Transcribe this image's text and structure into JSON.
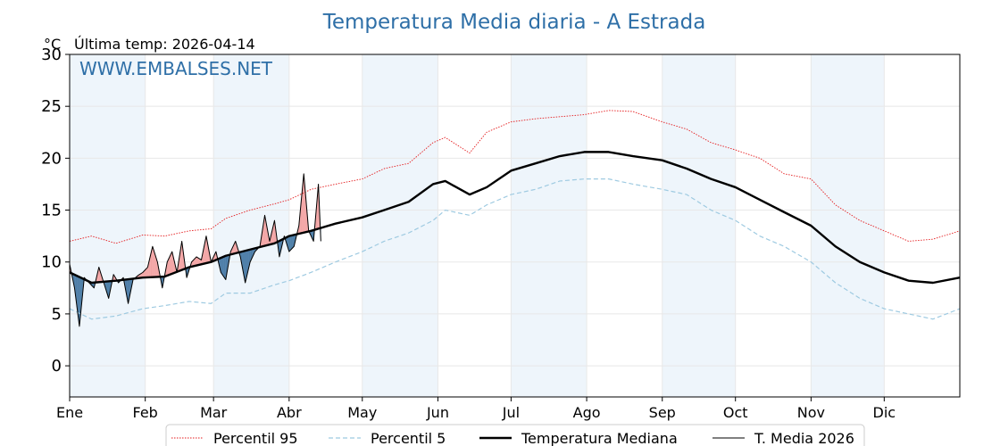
{
  "chart_data": {
    "type": "line",
    "title": "Temperatura Media diaria - A Estrada",
    "unit_label": "°C",
    "last_update": "Última temp: 2026-04-14",
    "watermark": "WWW.EMBALSES.NET",
    "ylim": [
      -3,
      30
    ],
    "y_ticks": [
      0,
      5,
      10,
      15,
      20,
      25,
      30
    ],
    "grid": true,
    "x_ticks": [
      {
        "label": "Ene",
        "day": 1
      },
      {
        "label": "Feb",
        "day": 32
      },
      {
        "label": "Mar",
        "day": 60
      },
      {
        "label": "Abr",
        "day": 91
      },
      {
        "label": "May",
        "day": 121
      },
      {
        "label": "Jun",
        "day": 152
      },
      {
        "label": "Jul",
        "day": 182
      },
      {
        "label": "Ago",
        "day": 213
      },
      {
        "label": "Sep",
        "day": 244
      },
      {
        "label": "Oct",
        "day": 274
      },
      {
        "label": "Nov",
        "day": 305
      },
      {
        "label": "Dic",
        "day": 335
      }
    ],
    "x_range": [
      1,
      366
    ],
    "shaded_months": [
      "Ene",
      "Mar",
      "May",
      "Jul",
      "Sep",
      "Nov"
    ],
    "legend_position": "bottom",
    "colors": {
      "title": "#2e6fa7",
      "p95": "#e41a1c",
      "p5": "#9ecae1",
      "median": "#000000",
      "current": "#000000",
      "above_fill": "#f4a6a6",
      "below_fill": "#4d7ea8",
      "month_band": "#eef5fb"
    },
    "series": [
      {
        "name": "Percentil 95",
        "style": "dotted-red",
        "points": [
          [
            1,
            12.0
          ],
          [
            10,
            12.5
          ],
          [
            20,
            11.8
          ],
          [
            31,
            12.6
          ],
          [
            40,
            12.5
          ],
          [
            50,
            13.0
          ],
          [
            59,
            13.2
          ],
          [
            65,
            14.2
          ],
          [
            75,
            15.0
          ],
          [
            85,
            15.6
          ],
          [
            91,
            16.0
          ],
          [
            100,
            17.0
          ],
          [
            110,
            17.5
          ],
          [
            121,
            18.0
          ],
          [
            130,
            19.0
          ],
          [
            140,
            19.5
          ],
          [
            150,
            21.5
          ],
          [
            155,
            22.0
          ],
          [
            165,
            20.5
          ],
          [
            172,
            22.5
          ],
          [
            182,
            23.5
          ],
          [
            192,
            23.8
          ],
          [
            202,
            24.0
          ],
          [
            212,
            24.2
          ],
          [
            222,
            24.6
          ],
          [
            232,
            24.5
          ],
          [
            244,
            23.5
          ],
          [
            254,
            22.8
          ],
          [
            264,
            21.5
          ],
          [
            274,
            20.8
          ],
          [
            284,
            20.0
          ],
          [
            294,
            18.5
          ],
          [
            305,
            18.0
          ],
          [
            315,
            15.5
          ],
          [
            325,
            14.0
          ],
          [
            335,
            13.0
          ],
          [
            345,
            12.0
          ],
          [
            355,
            12.2
          ],
          [
            366,
            13.0
          ]
        ]
      },
      {
        "name": "Percentil 5",
        "style": "dashed-lightblue",
        "points": [
          [
            1,
            5.5
          ],
          [
            10,
            4.5
          ],
          [
            20,
            4.8
          ],
          [
            31,
            5.5
          ],
          [
            40,
            5.8
          ],
          [
            50,
            6.2
          ],
          [
            59,
            6.0
          ],
          [
            65,
            7.0
          ],
          [
            75,
            7.0
          ],
          [
            85,
            7.8
          ],
          [
            91,
            8.2
          ],
          [
            100,
            9.0
          ],
          [
            110,
            10.0
          ],
          [
            121,
            11.0
          ],
          [
            130,
            12.0
          ],
          [
            140,
            12.8
          ],
          [
            150,
            14.0
          ],
          [
            155,
            15.0
          ],
          [
            165,
            14.5
          ],
          [
            172,
            15.5
          ],
          [
            182,
            16.5
          ],
          [
            192,
            17.0
          ],
          [
            202,
            17.8
          ],
          [
            212,
            18.0
          ],
          [
            222,
            18.0
          ],
          [
            232,
            17.5
          ],
          [
            244,
            17.0
          ],
          [
            254,
            16.5
          ],
          [
            264,
            15.0
          ],
          [
            274,
            14.0
          ],
          [
            284,
            12.5
          ],
          [
            294,
            11.5
          ],
          [
            305,
            10.0
          ],
          [
            315,
            8.0
          ],
          [
            325,
            6.5
          ],
          [
            335,
            5.5
          ],
          [
            345,
            5.0
          ],
          [
            355,
            4.5
          ],
          [
            366,
            5.5
          ]
        ]
      },
      {
        "name": "Temperatura Mediana",
        "style": "thick-black",
        "points": [
          [
            1,
            9.0
          ],
          [
            10,
            8.0
          ],
          [
            20,
            8.2
          ],
          [
            31,
            8.5
          ],
          [
            40,
            8.6
          ],
          [
            50,
            9.5
          ],
          [
            59,
            10.0
          ],
          [
            65,
            10.6
          ],
          [
            75,
            11.2
          ],
          [
            85,
            11.8
          ],
          [
            91,
            12.5
          ],
          [
            100,
            13.0
          ],
          [
            110,
            13.7
          ],
          [
            121,
            14.3
          ],
          [
            130,
            15.0
          ],
          [
            140,
            15.8
          ],
          [
            150,
            17.5
          ],
          [
            155,
            17.8
          ],
          [
            165,
            16.5
          ],
          [
            172,
            17.2
          ],
          [
            182,
            18.8
          ],
          [
            192,
            19.5
          ],
          [
            202,
            20.2
          ],
          [
            212,
            20.6
          ],
          [
            222,
            20.6
          ],
          [
            232,
            20.2
          ],
          [
            244,
            19.8
          ],
          [
            254,
            19.0
          ],
          [
            264,
            18.0
          ],
          [
            274,
            17.2
          ],
          [
            284,
            16.0
          ],
          [
            294,
            14.8
          ],
          [
            305,
            13.5
          ],
          [
            315,
            11.5
          ],
          [
            325,
            10.0
          ],
          [
            335,
            9.0
          ],
          [
            345,
            8.2
          ],
          [
            355,
            8.0
          ],
          [
            366,
            8.5
          ]
        ]
      },
      {
        "name": "T. Media 2026",
        "style": "thin-black",
        "points": [
          [
            1,
            9.8
          ],
          [
            3,
            7.5
          ],
          [
            5,
            3.8
          ],
          [
            7,
            8.5
          ],
          [
            9,
            8.0
          ],
          [
            11,
            7.5
          ],
          [
            13,
            9.5
          ],
          [
            15,
            8.0
          ],
          [
            17,
            6.5
          ],
          [
            19,
            8.8
          ],
          [
            21,
            8.0
          ],
          [
            23,
            8.5
          ],
          [
            25,
            6.0
          ],
          [
            27,
            8.3
          ],
          [
            29,
            8.7
          ],
          [
            31,
            9.0
          ],
          [
            33,
            9.5
          ],
          [
            35,
            11.5
          ],
          [
            37,
            10.0
          ],
          [
            39,
            7.5
          ],
          [
            41,
            10.0
          ],
          [
            43,
            11.0
          ],
          [
            45,
            9.0
          ],
          [
            47,
            12.0
          ],
          [
            49,
            8.5
          ],
          [
            51,
            10.0
          ],
          [
            53,
            10.5
          ],
          [
            55,
            10.2
          ],
          [
            57,
            12.5
          ],
          [
            59,
            10.0
          ],
          [
            61,
            11.0
          ],
          [
            63,
            9.0
          ],
          [
            65,
            8.3
          ],
          [
            67,
            11.0
          ],
          [
            69,
            12.0
          ],
          [
            71,
            10.5
          ],
          [
            73,
            8.0
          ],
          [
            75,
            10.0
          ],
          [
            77,
            11.0
          ],
          [
            79,
            11.5
          ],
          [
            81,
            14.5
          ],
          [
            83,
            12.0
          ],
          [
            85,
            14.0
          ],
          [
            87,
            10.5
          ],
          [
            89,
            12.5
          ],
          [
            91,
            11.0
          ],
          [
            93,
            11.5
          ],
          [
            95,
            13.5
          ],
          [
            97,
            18.5
          ],
          [
            99,
            13.0
          ],
          [
            101,
            12.0
          ],
          [
            103,
            17.5
          ],
          [
            104,
            12.0
          ]
        ]
      }
    ]
  },
  "legend": [
    {
      "label": "Percentil 95",
      "style": "dotted-red"
    },
    {
      "label": "Percentil 5",
      "style": "dashed-lightblue"
    },
    {
      "label": "Temperatura Mediana",
      "style": "thick-black"
    },
    {
      "label": "T. Media 2026",
      "style": "thin-black"
    }
  ]
}
